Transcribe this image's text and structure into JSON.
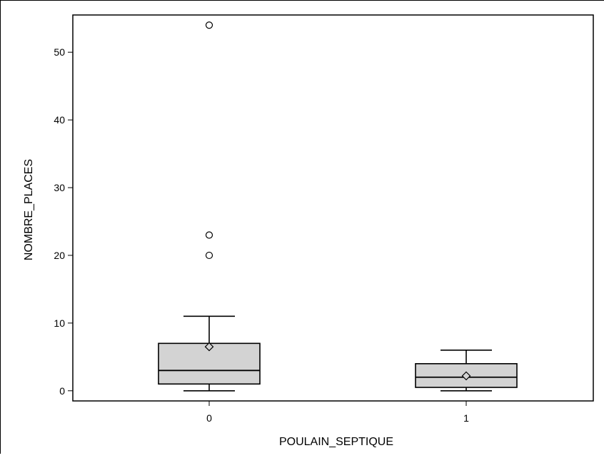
{
  "chart_data": {
    "type": "boxplot",
    "title": "",
    "xlabel": "POULAIN_SEPTIQUE",
    "ylabel": "NOMBRE_PLACES",
    "ylim": [
      -1.5,
      55.5
    ],
    "yticks": [
      0,
      10,
      20,
      30,
      40,
      50
    ],
    "grid": false,
    "legend": "none",
    "box_color": "#d3d3d3",
    "line_color": "#000000",
    "categories": [
      "0",
      "1"
    ],
    "boxes": [
      {
        "category": "0",
        "whisker_low": 0,
        "q1": 1,
        "median": 3,
        "q3": 7,
        "whisker_high": 11,
        "mean": 6.5,
        "outliers": [
          20,
          23,
          54
        ]
      },
      {
        "category": "1",
        "whisker_low": 0,
        "q1": 0.5,
        "median": 2,
        "q3": 4,
        "whisker_high": 6,
        "mean": 2.2,
        "outliers": []
      }
    ]
  }
}
